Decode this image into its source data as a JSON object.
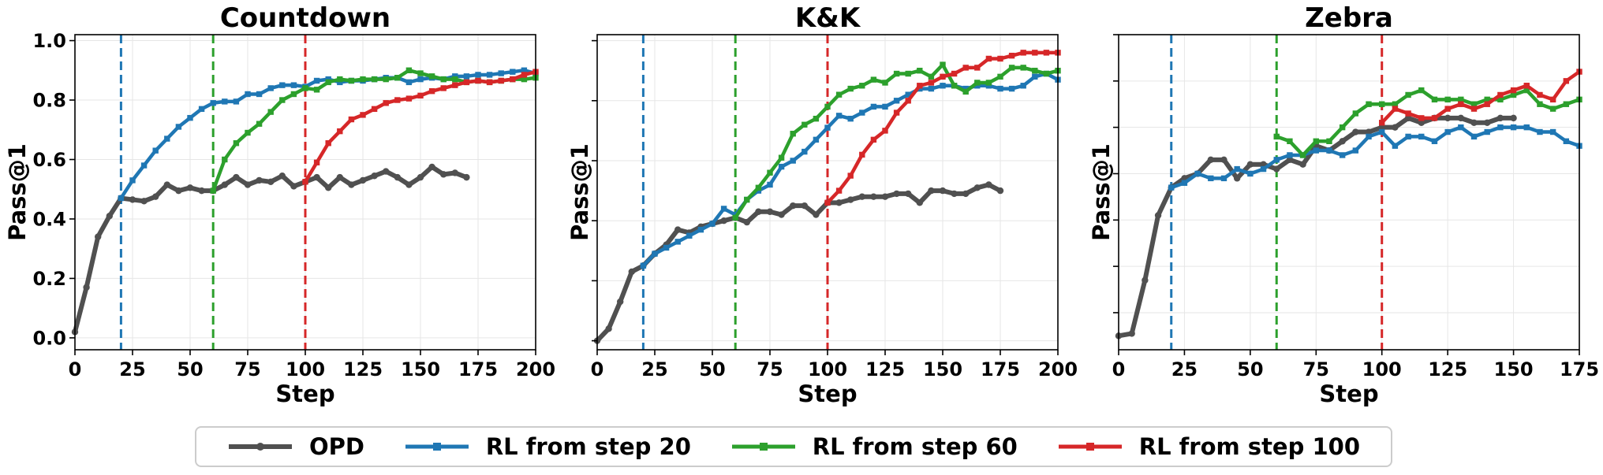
{
  "chart_data": [
    {
      "type": "line",
      "title": "Countdown",
      "xlabel": "Step",
      "ylabel": "Pass@1",
      "xlim": [
        0,
        200
      ],
      "ylim": [
        -0.04,
        1.02
      ],
      "xticks": [
        0,
        25,
        50,
        75,
        100,
        125,
        150,
        175,
        200
      ],
      "yticks": [
        0.0,
        0.2,
        0.4,
        0.6,
        0.8,
        1.0
      ],
      "show_ytick_labels": true,
      "grid": true,
      "vlines": [
        {
          "x": 20,
          "color": "#1f77b4"
        },
        {
          "x": 60,
          "color": "#2ca02c"
        },
        {
          "x": 100,
          "color": "#d62728"
        }
      ],
      "series": [
        {
          "name": "OPD",
          "color": "#505050",
          "x": [
            0,
            5,
            10,
            15,
            20,
            25,
            30,
            35,
            40,
            45,
            50,
            55,
            60,
            65,
            70,
            75,
            80,
            85,
            90,
            95,
            100,
            105,
            110,
            115,
            120,
            125,
            130,
            135,
            140,
            145,
            150,
            155,
            160,
            165,
            170
          ],
          "y": [
            0.02,
            0.17,
            0.34,
            0.41,
            0.47,
            0.465,
            0.46,
            0.475,
            0.515,
            0.495,
            0.505,
            0.495,
            0.495,
            0.515,
            0.54,
            0.515,
            0.53,
            0.525,
            0.545,
            0.51,
            0.525,
            0.54,
            0.505,
            0.54,
            0.515,
            0.53,
            0.545,
            0.56,
            0.54,
            0.515,
            0.54,
            0.575,
            0.55,
            0.555,
            0.54
          ]
        },
        {
          "name": "RL from step 20",
          "color": "#1f77b4",
          "x": [
            20,
            25,
            30,
            35,
            40,
            45,
            50,
            55,
            60,
            65,
            70,
            75,
            80,
            85,
            90,
            95,
            100,
            105,
            110,
            115,
            120,
            125,
            130,
            135,
            140,
            145,
            150,
            155,
            160,
            165,
            170,
            175,
            180,
            185,
            190,
            195,
            200
          ],
          "y": [
            0.47,
            0.53,
            0.58,
            0.63,
            0.67,
            0.71,
            0.74,
            0.77,
            0.79,
            0.795,
            0.795,
            0.82,
            0.82,
            0.84,
            0.85,
            0.85,
            0.845,
            0.865,
            0.87,
            0.86,
            0.865,
            0.865,
            0.87,
            0.875,
            0.875,
            0.86,
            0.87,
            0.875,
            0.87,
            0.88,
            0.88,
            0.885,
            0.885,
            0.89,
            0.895,
            0.9,
            0.89
          ]
        },
        {
          "name": "RL from step 60",
          "color": "#2ca02c",
          "x": [
            60,
            65,
            70,
            75,
            80,
            85,
            90,
            95,
            100,
            105,
            110,
            115,
            120,
            125,
            130,
            135,
            140,
            145,
            150,
            155,
            160,
            165,
            170,
            175,
            180,
            185,
            190,
            195,
            200
          ],
          "y": [
            0.495,
            0.6,
            0.655,
            0.69,
            0.72,
            0.76,
            0.8,
            0.82,
            0.84,
            0.835,
            0.86,
            0.87,
            0.865,
            0.87,
            0.87,
            0.87,
            0.875,
            0.9,
            0.89,
            0.88,
            0.87,
            0.87,
            0.86,
            0.865,
            0.86,
            0.865,
            0.87,
            0.87,
            0.875
          ]
        },
        {
          "name": "RL from step 100",
          "color": "#d62728",
          "x": [
            100,
            105,
            110,
            115,
            120,
            125,
            130,
            135,
            140,
            145,
            150,
            155,
            160,
            165,
            170,
            175,
            180,
            185,
            190,
            195,
            200
          ],
          "y": [
            0.525,
            0.59,
            0.655,
            0.695,
            0.735,
            0.75,
            0.77,
            0.79,
            0.8,
            0.805,
            0.815,
            0.83,
            0.84,
            0.85,
            0.86,
            0.865,
            0.86,
            0.865,
            0.87,
            0.885,
            0.895
          ]
        }
      ]
    },
    {
      "type": "line",
      "title": "K&K",
      "xlabel": "Step",
      "ylabel": "Pass@1",
      "xlim": [
        0,
        200
      ],
      "ylim": [
        -0.03,
        1.02
      ],
      "xticks": [
        0,
        25,
        50,
        75,
        100,
        125,
        150,
        175,
        200
      ],
      "yticks": [
        0.0,
        0.2,
        0.4,
        0.6,
        0.8,
        1.0
      ],
      "show_ytick_labels": false,
      "grid": true,
      "vlines": [
        {
          "x": 20,
          "color": "#1f77b4"
        },
        {
          "x": 60,
          "color": "#2ca02c"
        },
        {
          "x": 100,
          "color": "#d62728"
        }
      ],
      "series": [
        {
          "name": "OPD",
          "color": "#505050",
          "x": [
            0,
            5,
            10,
            15,
            20,
            25,
            30,
            35,
            40,
            45,
            50,
            55,
            60,
            65,
            70,
            75,
            80,
            85,
            90,
            95,
            100,
            105,
            110,
            115,
            120,
            125,
            130,
            135,
            140,
            145,
            150,
            155,
            160,
            165,
            170,
            175
          ],
          "y": [
            0.0,
            0.04,
            0.13,
            0.23,
            0.25,
            0.29,
            0.32,
            0.37,
            0.36,
            0.38,
            0.39,
            0.4,
            0.41,
            0.395,
            0.43,
            0.43,
            0.42,
            0.45,
            0.45,
            0.42,
            0.46,
            0.46,
            0.47,
            0.48,
            0.48,
            0.48,
            0.49,
            0.49,
            0.46,
            0.5,
            0.5,
            0.49,
            0.49,
            0.51,
            0.52,
            0.5
          ]
        },
        {
          "name": "RL from step 20",
          "color": "#1f77b4",
          "x": [
            20,
            25,
            30,
            35,
            40,
            45,
            50,
            55,
            60,
            65,
            70,
            75,
            80,
            85,
            90,
            95,
            100,
            105,
            110,
            115,
            120,
            125,
            130,
            135,
            140,
            145,
            150,
            155,
            160,
            165,
            170,
            175,
            180,
            185,
            190,
            195,
            200
          ],
          "y": [
            0.25,
            0.29,
            0.31,
            0.33,
            0.35,
            0.37,
            0.39,
            0.44,
            0.42,
            0.47,
            0.5,
            0.52,
            0.58,
            0.6,
            0.63,
            0.67,
            0.71,
            0.75,
            0.74,
            0.76,
            0.78,
            0.78,
            0.8,
            0.82,
            0.84,
            0.84,
            0.85,
            0.85,
            0.84,
            0.85,
            0.85,
            0.84,
            0.84,
            0.85,
            0.88,
            0.89,
            0.87
          ]
        },
        {
          "name": "RL from step 60",
          "color": "#2ca02c",
          "x": [
            60,
            65,
            70,
            75,
            80,
            85,
            90,
            95,
            100,
            105,
            110,
            115,
            120,
            125,
            130,
            135,
            140,
            145,
            150,
            155,
            160,
            165,
            170,
            175,
            180,
            185,
            190,
            195,
            200
          ],
          "y": [
            0.41,
            0.47,
            0.51,
            0.56,
            0.61,
            0.69,
            0.72,
            0.74,
            0.78,
            0.82,
            0.84,
            0.85,
            0.87,
            0.86,
            0.89,
            0.89,
            0.9,
            0.88,
            0.92,
            0.85,
            0.83,
            0.86,
            0.86,
            0.88,
            0.91,
            0.91,
            0.9,
            0.89,
            0.9
          ]
        },
        {
          "name": "RL from step 100",
          "color": "#d62728",
          "x": [
            100,
            105,
            110,
            115,
            120,
            125,
            130,
            135,
            140,
            145,
            150,
            155,
            160,
            165,
            170,
            175,
            180,
            185,
            190,
            195,
            200
          ],
          "y": [
            0.46,
            0.5,
            0.55,
            0.62,
            0.67,
            0.7,
            0.76,
            0.8,
            0.85,
            0.86,
            0.88,
            0.89,
            0.91,
            0.91,
            0.94,
            0.94,
            0.95,
            0.96,
            0.96,
            0.96,
            0.96
          ]
        }
      ]
    },
    {
      "type": "line",
      "title": "Zebra",
      "xlabel": "Step",
      "ylabel": "Pass@1",
      "xlim": [
        0,
        175
      ],
      "ylim": [
        0.02,
        0.7
      ],
      "xticks": [
        0,
        25,
        50,
        75,
        100,
        125,
        150,
        175
      ],
      "yticks": [
        0.1,
        0.2,
        0.3,
        0.4,
        0.5,
        0.6,
        0.7
      ],
      "show_ytick_labels": false,
      "grid": true,
      "vlines": [
        {
          "x": 20,
          "color": "#1f77b4"
        },
        {
          "x": 60,
          "color": "#2ca02c"
        },
        {
          "x": 100,
          "color": "#d62728"
        }
      ],
      "series": [
        {
          "name": "OPD",
          "color": "#505050",
          "x": [
            0,
            5,
            10,
            15,
            20,
            25,
            30,
            35,
            40,
            45,
            50,
            55,
            60,
            65,
            70,
            75,
            80,
            85,
            90,
            95,
            100,
            105,
            110,
            115,
            120,
            125,
            130,
            135,
            140,
            145,
            150
          ],
          "y": [
            0.05,
            0.055,
            0.17,
            0.31,
            0.37,
            0.39,
            0.4,
            0.43,
            0.43,
            0.39,
            0.42,
            0.42,
            0.41,
            0.43,
            0.42,
            0.46,
            0.45,
            0.47,
            0.49,
            0.49,
            0.5,
            0.5,
            0.52,
            0.51,
            0.52,
            0.52,
            0.52,
            0.51,
            0.51,
            0.52,
            0.52
          ]
        },
        {
          "name": "RL from step 20",
          "color": "#1f77b4",
          "x": [
            20,
            25,
            30,
            35,
            40,
            45,
            50,
            55,
            60,
            65,
            70,
            75,
            80,
            85,
            90,
            95,
            100,
            105,
            110,
            115,
            120,
            125,
            130,
            135,
            140,
            145,
            150,
            155,
            160,
            165,
            170,
            175
          ],
          "y": [
            0.37,
            0.38,
            0.4,
            0.39,
            0.39,
            0.41,
            0.4,
            0.41,
            0.43,
            0.44,
            0.44,
            0.45,
            0.45,
            0.44,
            0.45,
            0.48,
            0.49,
            0.46,
            0.48,
            0.48,
            0.47,
            0.49,
            0.5,
            0.48,
            0.49,
            0.5,
            0.5,
            0.5,
            0.49,
            0.49,
            0.47,
            0.46
          ]
        },
        {
          "name": "RL from step 60",
          "color": "#2ca02c",
          "x": [
            60,
            65,
            70,
            75,
            80,
            85,
            90,
            95,
            100,
            105,
            110,
            115,
            120,
            125,
            130,
            135,
            140,
            145,
            150,
            155,
            160,
            165,
            170,
            175
          ],
          "y": [
            0.48,
            0.47,
            0.44,
            0.47,
            0.47,
            0.5,
            0.53,
            0.55,
            0.55,
            0.55,
            0.57,
            0.58,
            0.56,
            0.56,
            0.56,
            0.55,
            0.56,
            0.56,
            0.57,
            0.58,
            0.55,
            0.54,
            0.55,
            0.56
          ]
        },
        {
          "name": "RL from step 100",
          "color": "#d62728",
          "x": [
            100,
            105,
            110,
            115,
            120,
            125,
            130,
            135,
            140,
            145,
            150,
            155,
            160,
            165,
            170,
            175
          ],
          "y": [
            0.51,
            0.54,
            0.53,
            0.52,
            0.52,
            0.54,
            0.55,
            0.54,
            0.55,
            0.57,
            0.58,
            0.59,
            0.57,
            0.56,
            0.6,
            0.62
          ]
        }
      ]
    }
  ],
  "legend": {
    "placement": "bottom-center",
    "items": [
      {
        "label": "OPD",
        "color": "#505050",
        "marker": "circle"
      },
      {
        "label": "RL from step 20",
        "color": "#1f77b4",
        "marker": "square"
      },
      {
        "label": "RL from step 60",
        "color": "#2ca02c",
        "marker": "square"
      },
      {
        "label": "RL from step 100",
        "color": "#d62728",
        "marker": "square"
      }
    ]
  }
}
